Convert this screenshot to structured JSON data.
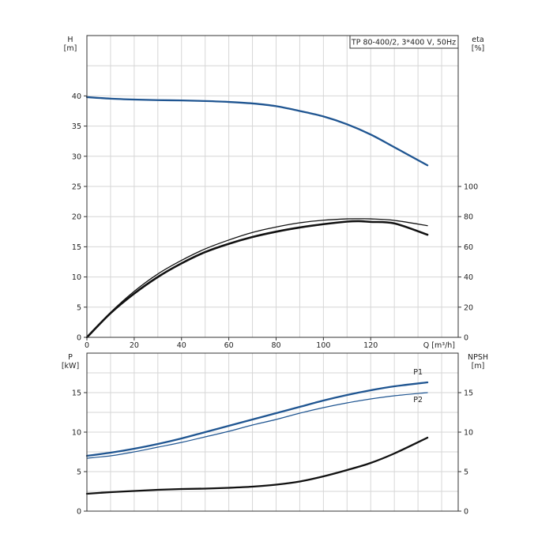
{
  "chart_data": [
    {
      "type": "line",
      "title": "TP 80-400/2, 3*400 V, 50Hz",
      "xlabel": "Q [m³/h]",
      "xlim": [
        0,
        157
      ],
      "x_ticks": [
        "0",
        "20",
        "40",
        "60",
        "80",
        "100",
        "120"
      ],
      "ylabel_left": [
        "H",
        "[m]"
      ],
      "ylim_left": [
        0,
        50
      ],
      "y_ticks_left": [
        "0",
        "5",
        "10",
        "15",
        "20",
        "25",
        "30",
        "35",
        "40"
      ],
      "ylabel_right": [
        "eta",
        "[%]"
      ],
      "ylim_right": [
        0,
        200
      ],
      "y_ticks_right": [
        "0",
        "20",
        "40",
        "60",
        "80",
        "100"
      ],
      "grid": true,
      "colors": {
        "head": "#1f5591",
        "efficiency": "#111111"
      },
      "series": [
        {
          "axis": "left",
          "x": [
            0,
            10,
            20,
            30,
            40,
            50,
            60,
            70,
            80,
            90,
            100,
            110,
            120,
            130,
            144
          ],
          "y": [
            39.8,
            39.55,
            39.4,
            39.3,
            39.25,
            39.15,
            39.0,
            38.75,
            38.3,
            37.5,
            36.6,
            35.3,
            33.6,
            31.5,
            28.5
          ]
        },
        {
          "axis": "right",
          "x": [
            0,
            10,
            20,
            30,
            40,
            50,
            60,
            70,
            80,
            90,
            100,
            110,
            115,
            120,
            130,
            144
          ],
          "y": [
            0,
            16,
            29,
            40,
            49,
            56.5,
            62,
            66.5,
            70,
            72.8,
            75,
            76.7,
            77,
            76.5,
            75.5,
            68
          ]
        },
        {
          "axis": "right",
          "x": [
            0,
            10,
            20,
            30,
            40,
            50,
            60,
            70,
            80,
            90,
            100,
            110,
            115,
            120,
            130,
            144
          ],
          "y": [
            0,
            16.5,
            30.5,
            42,
            51,
            58.6,
            64.5,
            69.5,
            73.1,
            75.9,
            77.6,
            78.5,
            78.6,
            78.5,
            77.5,
            74
          ]
        }
      ]
    },
    {
      "type": "line",
      "xlim": [
        0,
        157
      ],
      "ylabel_left": [
        "P",
        "[kW]"
      ],
      "ylim_left": [
        0,
        20
      ],
      "y_ticks_left": [
        "0",
        "5",
        "10",
        "15"
      ],
      "ylabel_right": [
        "NPSH",
        "[m]"
      ],
      "ylim_right": [
        0,
        20
      ],
      "y_ticks_right": [
        "0",
        "5",
        "10",
        "15"
      ],
      "grid": true,
      "colors": {
        "power": "#1f5591",
        "npsh": "#111111"
      },
      "series": [
        {
          "name": "P1",
          "axis": "left",
          "x": [
            0,
            10,
            20,
            30,
            40,
            50,
            60,
            70,
            80,
            90,
            100,
            110,
            120,
            130,
            144
          ],
          "y": [
            7.0,
            7.4,
            7.9,
            8.5,
            9.2,
            10.0,
            10.8,
            11.6,
            12.4,
            13.2,
            14.0,
            14.7,
            15.3,
            15.8,
            16.3
          ]
        },
        {
          "name": "P2",
          "axis": "left",
          "x": [
            0,
            10,
            20,
            30,
            40,
            50,
            60,
            70,
            80,
            90,
            100,
            110,
            120,
            130,
            144
          ],
          "y": [
            6.7,
            7.0,
            7.5,
            8.1,
            8.7,
            9.4,
            10.1,
            10.9,
            11.6,
            12.4,
            13.1,
            13.7,
            14.2,
            14.6,
            15.0
          ]
        },
        {
          "axis": "right",
          "x": [
            0,
            10,
            20,
            30,
            40,
            50,
            60,
            70,
            80,
            90,
            100,
            110,
            120,
            130,
            144
          ],
          "y": [
            2.2,
            2.4,
            2.55,
            2.7,
            2.8,
            2.85,
            2.95,
            3.1,
            3.35,
            3.75,
            4.4,
            5.2,
            6.1,
            7.3,
            9.3
          ]
        }
      ]
    }
  ]
}
